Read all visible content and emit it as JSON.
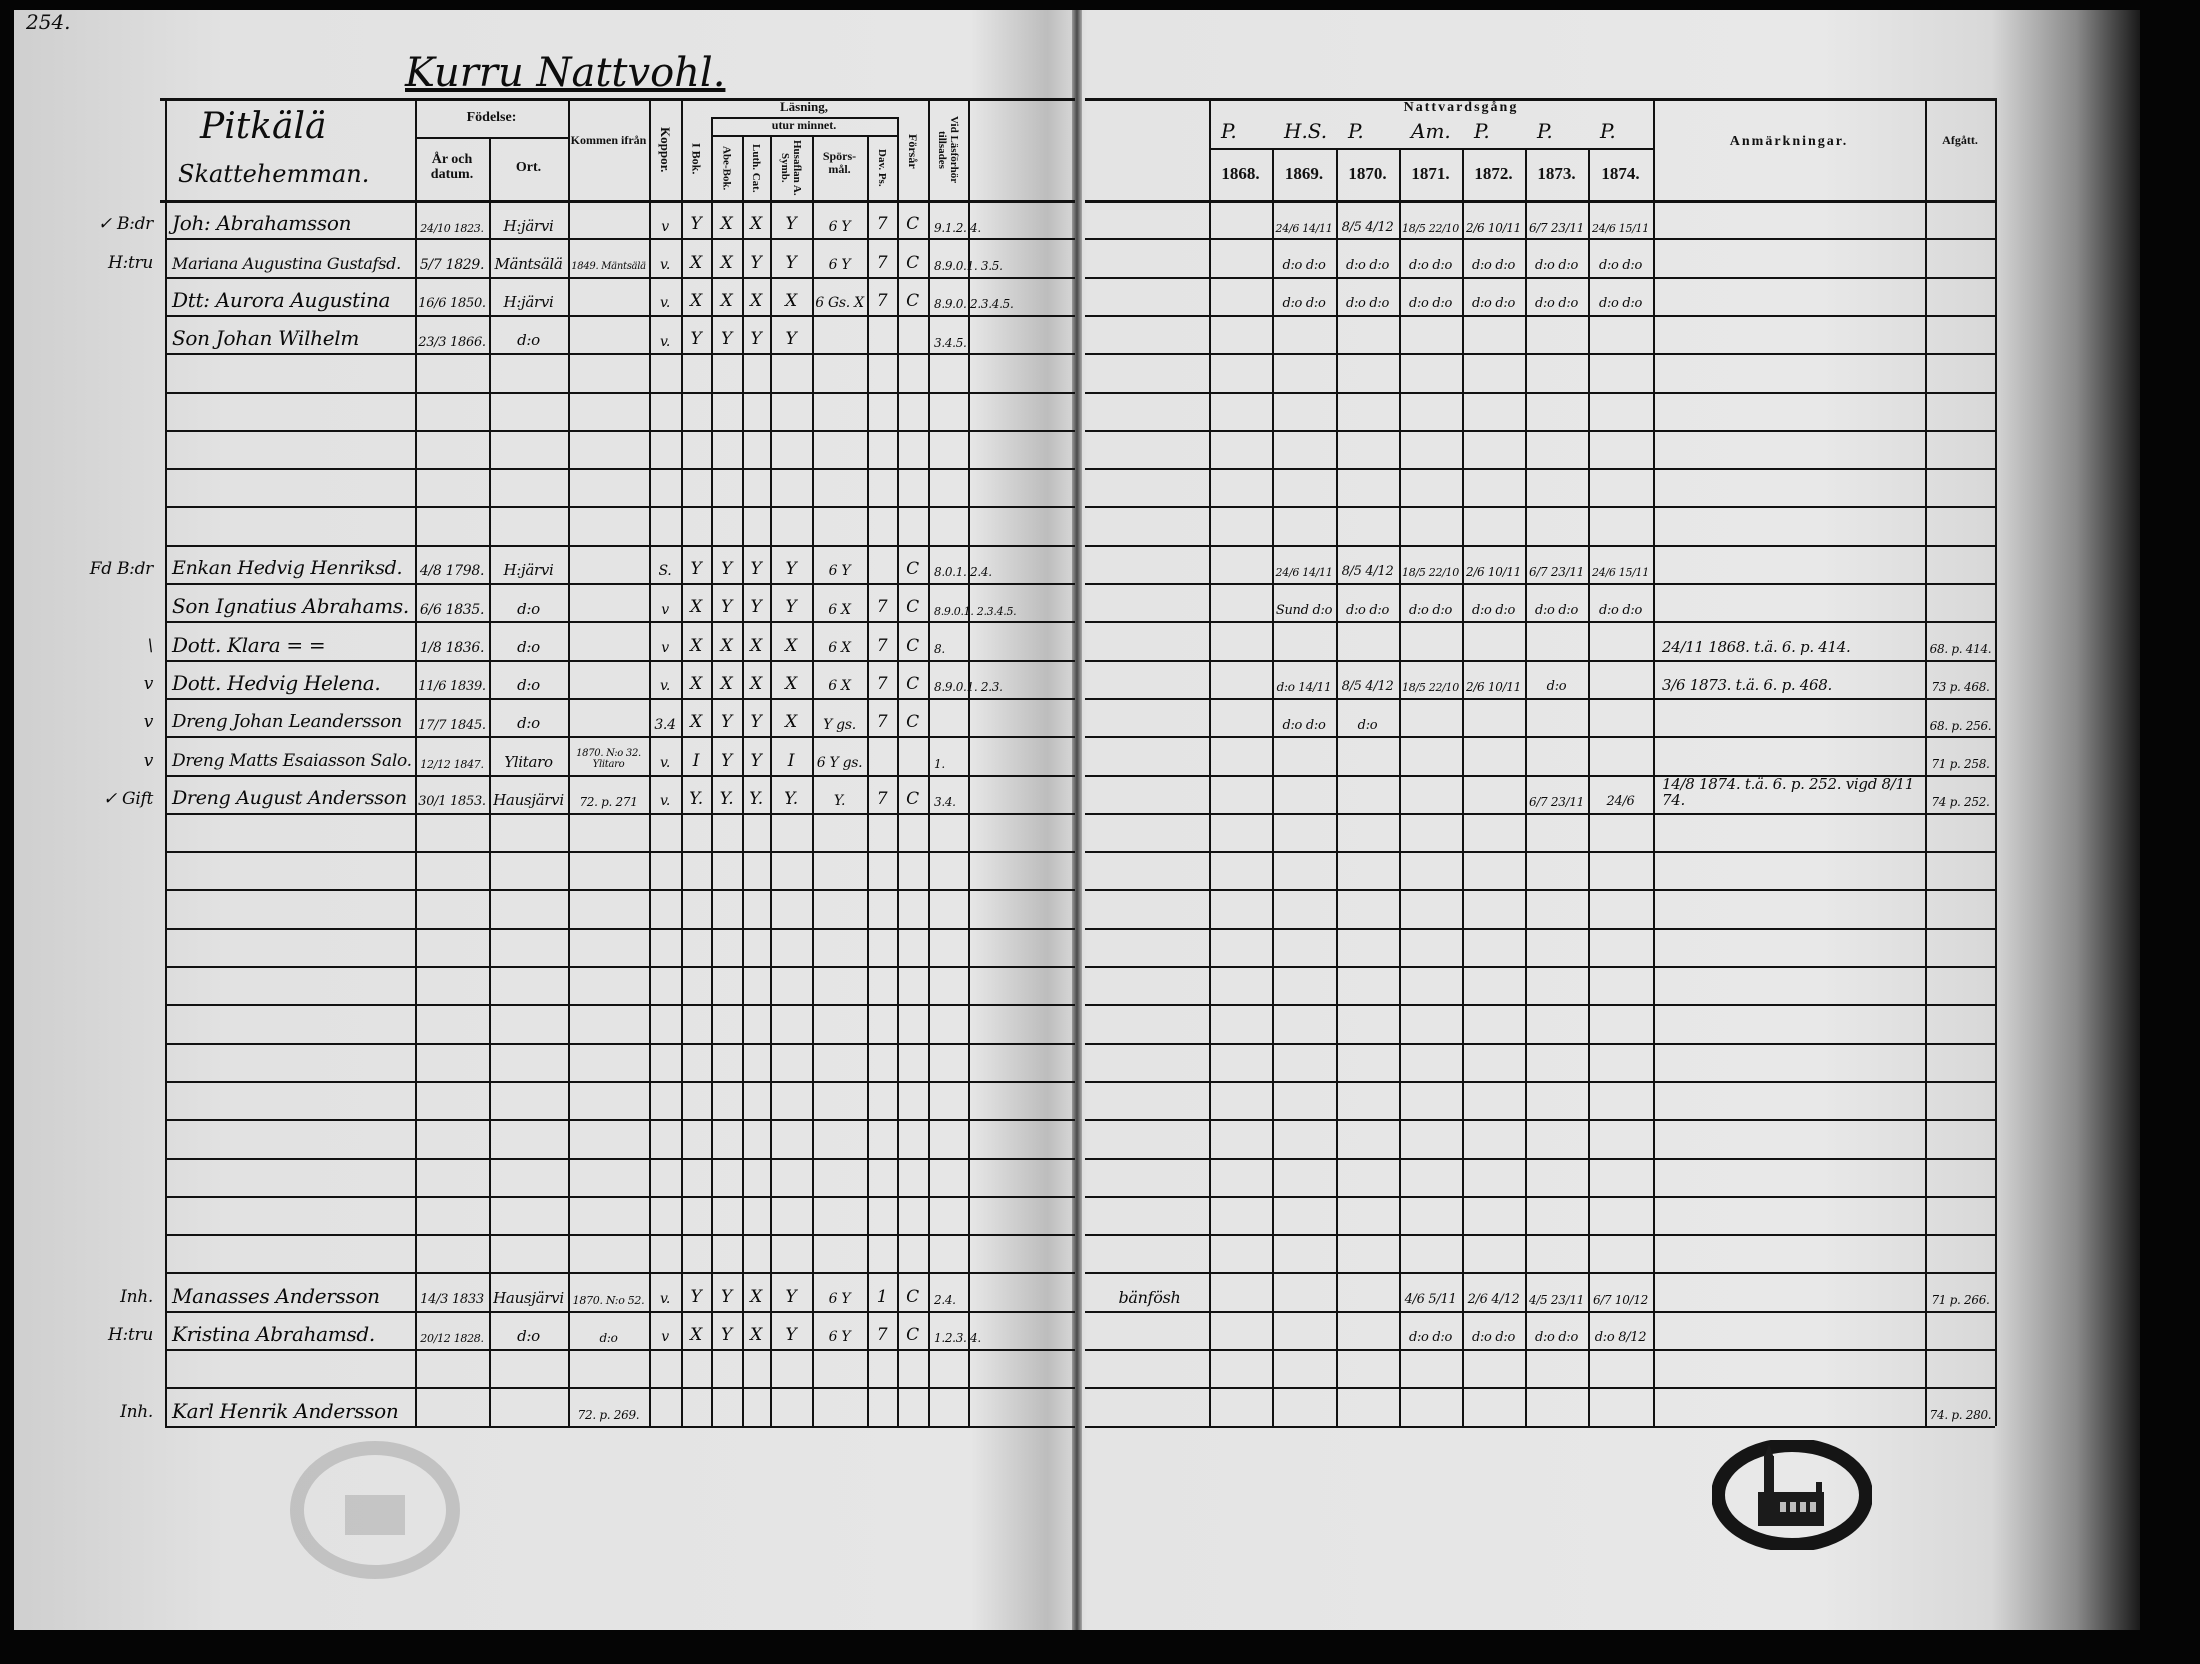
{
  "page_number": "254.",
  "title": "Kurru Nattvohl.",
  "left_header": {
    "village": "Pitkälä",
    "village_sub": "Skattehemman.",
    "fodelse": "Födelse:",
    "ar_och_datum": "År och datum.",
    "ort": "Ort.",
    "kommen_ifran": "Kommen ifrån",
    "koppor": "Koppor.",
    "lasning": "Läsning,",
    "utur_minnet": "utur minnet.",
    "i_bok": "I Bok.",
    "abe_bok": "Abe-Bok.",
    "luth_cat": "Luth. Cat.",
    "husaflan": "Husaflan A. Symb.",
    "sporsmal": "Spörs-mål.",
    "dav_ps": "Dav. Ps.",
    "forsar": "Försår",
    "tillsades": "Vid Läsförhör tillsades"
  },
  "right_header": {
    "nattvardsgang": "Nattvardsgång",
    "priests": [
      "P.",
      "H.S.",
      "P.",
      "Am.",
      "P.",
      "P.",
      "P."
    ],
    "years": [
      "1868.",
      "1869.",
      "1870.",
      "1871.",
      "1872.",
      "1873.",
      "1874."
    ],
    "anmarkningar": "Anmärkningar.",
    "afgatt": "Afgått."
  },
  "rows": [
    {
      "row": 0,
      "margin": "✓   B:dr",
      "name": "Joh: Abrahamsson",
      "birth": "24/10 1823.",
      "place": "H:järvi",
      "from": "",
      "koppor": "v",
      "ibok": "Y",
      "abe": "X",
      "luth": "X",
      "husa": "Y",
      "spors": "6 Y",
      "davps": "7",
      "forsar": "C",
      "tills": "9.1.2. 4.",
      "extra": "",
      "nattvard": [
        "",
        "24/6 14/11",
        "8/5 4/12",
        "18/5 22/10",
        "2/6 10/11",
        "6/7 23/11",
        "24/6 15/11"
      ],
      "anm": "",
      "afgatt": ""
    },
    {
      "row": 1,
      "margin": "H:tru",
      "name": "Mariana Augustina Gustafsd.",
      "birth": "5/7 1829.",
      "place": "Mäntsälä",
      "from": "1849. Mäntsälä",
      "koppor": "v.",
      "ibok": "X",
      "abe": "X",
      "luth": "Y",
      "husa": "Y",
      "spors": "6 Y",
      "davps": "7",
      "forsar": "C",
      "tills": "8.9.0.1. 3.5.",
      "extra": "",
      "nattvard": [
        "",
        "d:o d:o",
        "d:o d:o",
        "d:o d:o",
        "d:o d:o",
        "d:o d:o",
        "d:o d:o"
      ],
      "anm": "",
      "afgatt": ""
    },
    {
      "row": 2,
      "margin": "",
      "name": "Dtt: Aurora Augustina",
      "birth": "16/6 1850.",
      "place": "H:järvi",
      "from": "",
      "koppor": "v.",
      "ibok": "X",
      "abe": "X",
      "luth": "X",
      "husa": "X",
      "spors": "6 Gs. X",
      "davps": "7",
      "forsar": "C",
      "tills": "8.9.0. 2.3.4.5.",
      "extra": "",
      "nattvard": [
        "",
        "d:o d:o",
        "d:o d:o",
        "d:o d:o",
        "d:o d:o",
        "d:o d:o",
        "d:o d:o"
      ],
      "anm": "",
      "afgatt": ""
    },
    {
      "row": 3,
      "margin": "",
      "name": "Son Johan Wilhelm",
      "birth": "23/3 1866.",
      "place": "d:o",
      "from": "",
      "koppor": "v.",
      "ibok": "Y",
      "abe": "Y",
      "luth": "Y",
      "husa": "Y",
      "spors": "",
      "davps": "",
      "forsar": "",
      "tills": "3.4.5.",
      "extra": "",
      "nattvard": [
        "",
        "",
        "",
        "",
        "",
        "",
        ""
      ],
      "anm": "",
      "afgatt": ""
    },
    {
      "row": 9,
      "margin": "Fd  B:dr",
      "name": "Enkan Hedvig Henriksd.",
      "birth": "4/8 1798.",
      "place": "H:järvi",
      "from": "",
      "koppor": "S.",
      "ibok": "Y",
      "abe": "Y",
      "luth": "Y",
      "husa": "Y",
      "spors": "6 Y",
      "davps": "",
      "forsar": "C",
      "tills": "8.0.1. 2.4.",
      "extra": "",
      "nattvard": [
        "",
        "24/6 14/11",
        "8/5 4/12",
        "18/5 22/10",
        "2/6 10/11",
        "6/7 23/11",
        "24/6 15/11"
      ],
      "anm": "",
      "afgatt": ""
    },
    {
      "row": 10,
      "margin": "",
      "name": "Son Ignatius Abrahams.",
      "birth": "6/6 1835.",
      "place": "d:o",
      "from": "",
      "koppor": "v",
      "ibok": "X",
      "abe": "Y",
      "luth": "Y",
      "husa": "Y",
      "spors": "6 X",
      "davps": "7",
      "forsar": "C",
      "tills": "8.9.0.1. 2.3.4.5.",
      "extra": "",
      "nattvard": [
        "",
        "Sund d:o",
        "d:o d:o",
        "d:o d:o",
        "d:o d:o",
        "d:o d:o",
        "d:o d:o"
      ],
      "anm": "",
      "afgatt": ""
    },
    {
      "row": 11,
      "margin": "\\",
      "name": "Dott. Klara  =  =",
      "birth": "1/8 1836.",
      "place": "d:o",
      "from": "",
      "koppor": "v",
      "ibok": "X",
      "abe": "X",
      "luth": "X",
      "husa": "X",
      "spors": "6 X",
      "davps": "7",
      "forsar": "C",
      "tills": "8.",
      "extra": "",
      "nattvard": [
        "",
        "",
        "",
        "",
        "",
        "",
        ""
      ],
      "anm": "24/11 1868. t.ä. 6. p. 414.",
      "afgatt": "68. p. 414."
    },
    {
      "row": 12,
      "margin": "v",
      "name": "Dott. Hedvig Helena.",
      "birth": "11/6 1839.",
      "place": "d:o",
      "from": "",
      "koppor": "v.",
      "ibok": "X",
      "abe": "X",
      "luth": "X",
      "husa": "X",
      "spors": "6 X",
      "davps": "7",
      "forsar": "C",
      "tills": "8.9.0.1. 2.3.",
      "extra": "",
      "nattvard": [
        "",
        "d:o 14/11",
        "8/5 4/12",
        "18/5 22/10",
        "2/6 10/11",
        "d:o",
        ""
      ],
      "anm": "3/6 1873. t.ä. 6. p. 468.",
      "afgatt": "73 p. 468."
    },
    {
      "row": 13,
      "margin": "v",
      "name": "Dreng Johan Leandersson",
      "birth": "17/7 1845.",
      "place": "d:o",
      "from": "",
      "koppor": "3.4",
      "ibok": "X",
      "abe": "Y",
      "luth": "Y",
      "husa": "X",
      "spors": "Y gs.",
      "davps": "7",
      "forsar": "C",
      "tills": "",
      "extra": "",
      "nattvard": [
        "",
        "d:o d:o",
        "d:o",
        "",
        "",
        "",
        ""
      ],
      "anm": "",
      "afgatt": "68. p. 256."
    },
    {
      "row": 14,
      "margin": "v",
      "name": "Dreng Matts Esaiasson Salo.",
      "birth": "12/12 1847.",
      "place": "Ylitaro",
      "from": "1870. N:o 32. Ylitaro",
      "koppor": "v.",
      "ibok": "I",
      "abe": "Y",
      "luth": "Y",
      "husa": "I",
      "spors": "6 Y gs.",
      "davps": "",
      "forsar": "",
      "tills": "1.",
      "extra": "",
      "nattvard": [
        "",
        "",
        "",
        "",
        "",
        "",
        ""
      ],
      "anm": "",
      "afgatt": "71 p. 258."
    },
    {
      "row": 15,
      "margin": "✓ Gift",
      "name": "Dreng August Andersson",
      "birth": "30/1 1853.",
      "place": "Hausjärvi",
      "from": "72. p. 271",
      "koppor": "v.",
      "ibok": "Y.",
      "abe": "Y.",
      "luth": "Y.",
      "husa": "Y.",
      "spors": "Y.",
      "davps": "7",
      "forsar": "C",
      "tills": "3.4.",
      "extra": "",
      "nattvard": [
        "",
        "",
        "",
        "",
        "",
        "6/7 23/11",
        "24/6"
      ],
      "anm": "14/8 1874. t.ä. 6. p. 252. vigd 8/11 74.",
      "afgatt": "74 p. 252."
    },
    {
      "row": 28,
      "margin": "Inh.",
      "name": "Manasses Andersson",
      "birth": "14/3 1833",
      "place": "Hausjärvi",
      "from": "1870. N:o 52.",
      "koppor": "v.",
      "ibok": "Y",
      "abe": "Y",
      "luth": "X",
      "husa": "Y",
      "spors": "6 Y",
      "davps": "1",
      "forsar": "C",
      "tills": "2.4.",
      "extra": "bänfösh",
      "nattvard": [
        "",
        "",
        "",
        "4/6 5/11",
        "2/6 4/12",
        "4/5 23/11",
        "6/7 10/12"
      ],
      "anm": "",
      "afgatt": "71 p. 266."
    },
    {
      "row": 29,
      "margin": "H:tru",
      "name": "Kristina Abrahamsd.",
      "birth": "20/12 1828.",
      "place": "d:o",
      "from": "d:o",
      "koppor": "v",
      "ibok": "X",
      "abe": "Y",
      "luth": "X",
      "husa": "Y",
      "spors": "6 Y",
      "davps": "7",
      "forsar": "C",
      "tills": "1.2.3. 4.",
      "extra": "",
      "nattvard": [
        "",
        "",
        "",
        "d:o d:o",
        "d:o d:o",
        "d:o d:o",
        "d:o 8/12"
      ],
      "anm": "",
      "afgatt": ""
    },
    {
      "row": 31,
      "margin": "Inh.",
      "name": "Karl Henrik Andersson",
      "birth": "",
      "place": "",
      "from": "72. p. 269.",
      "koppor": "",
      "ibok": "",
      "abe": "",
      "luth": "",
      "husa": "",
      "spors": "",
      "davps": "",
      "forsar": "",
      "tills": "",
      "extra": "",
      "nattvard": [
        "",
        "",
        "",
        "",
        "",
        "",
        ""
      ],
      "anm": "",
      "afgatt": "74. p. 280."
    }
  ],
  "colors": {
    "ink": "#0d0d0d",
    "paper": "#e4e4e4",
    "frame": "#050505"
  }
}
